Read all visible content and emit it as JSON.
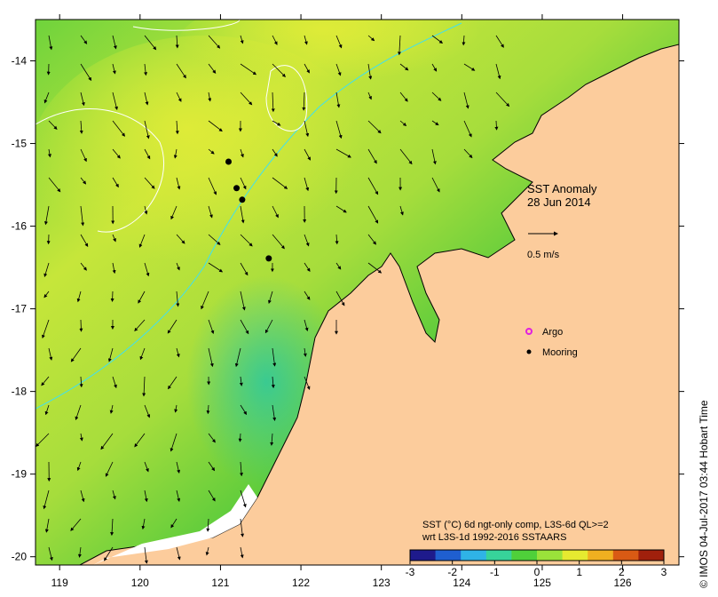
{
  "map": {
    "title": "SST Anomaly",
    "date": "28 Jun 2014",
    "velocity_scale_label": "0.5 m/s",
    "lon_range": [
      118.7,
      126.7
    ],
    "lat_range": [
      -20.1,
      -13.5
    ],
    "lon_ticks": [
      "119",
      "120",
      "121",
      "122",
      "123",
      "124",
      "125",
      "126"
    ],
    "lat_ticks": [
      "-14",
      "-15",
      "-16",
      "-17",
      "-18",
      "-19",
      "-20"
    ],
    "legend": {
      "argo_label": "Argo",
      "mooring_label": "Mooring"
    },
    "moorings": [
      {
        "lon": 121.1,
        "lat": -15.22
      },
      {
        "lon": 121.2,
        "lat": -15.54
      },
      {
        "lon": 121.27,
        "lat": -15.68
      },
      {
        "lon": 121.6,
        "lat": -16.39
      }
    ],
    "colorbar": {
      "caption_line1": "SST (°C) 6d ngt-only comp, L3S-6d QL>=2",
      "caption_line2": "wrt L3S-1d 1992-2016 SSTAARS",
      "ticks": [
        "-3",
        "-2",
        "-1",
        "0",
        "1",
        "2",
        "3"
      ],
      "colors": [
        "#1e1a8c",
        "#1f5fd0",
        "#2fb3e6",
        "#37d39a",
        "#4fd03a",
        "#9ae23a",
        "#e6ea30",
        "#f0b020",
        "#d95a14",
        "#a0200c"
      ]
    },
    "colors": {
      "land": "#fccc9c",
      "sea_green": "#4cc83c",
      "sea_yellow": "#d2ea3a",
      "argo": "#e020e0"
    },
    "credit": "© IMOS 04-Jul-2017 03:44 Hobart Time"
  }
}
